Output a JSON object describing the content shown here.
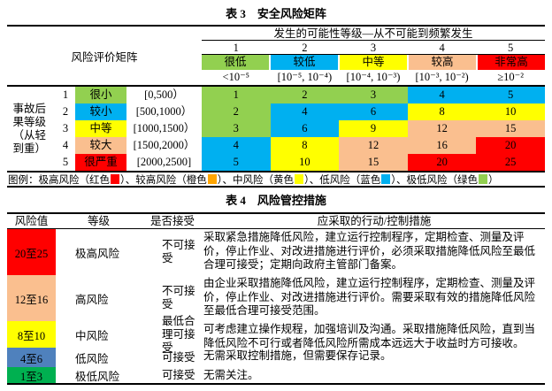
{
  "colors": {
    "green": "#92D050",
    "blue": "#00B0F0",
    "yellow": "#FFFF00",
    "tan": "#FABF8F",
    "red": "#FF0000",
    "legend_orange": "#FFA500",
    "low_blue": "#4F81BD",
    "very_low_green": "#00B050"
  },
  "table3": {
    "title": "表 3　安全风险矩阵",
    "corner_label": "风险评价矩阵",
    "probability_header": "发生的可能性等级—从不可能到频繁发生",
    "columns": [
      {
        "num": "1",
        "label": "很低",
        "color": "green",
        "range": "<10⁻⁵"
      },
      {
        "num": "2",
        "label": "较低",
        "color": "blue",
        "range": "[10⁻⁵, 10⁻⁴)"
      },
      {
        "num": "3",
        "label": "中等",
        "color": "yellow",
        "range": "[10⁻⁴, 10⁻³)"
      },
      {
        "num": "4",
        "label": "较高",
        "color": "tan",
        "range": "[10⁻³, 10⁻²)"
      },
      {
        "num": "5",
        "label": "非常高",
        "color": "red",
        "range": "≥10⁻²"
      }
    ],
    "row_group_label": "事故后果等级（从轻到重）",
    "rows": [
      {
        "num": "1",
        "label": "很小",
        "color": "green",
        "range": "[0,500）",
        "cells": [
          {
            "value": "1",
            "color": "green"
          },
          {
            "value": "2",
            "color": "green"
          },
          {
            "value": "3",
            "color": "green"
          },
          {
            "value": "4",
            "color": "blue"
          },
          {
            "value": "5",
            "color": "blue"
          }
        ]
      },
      {
        "num": "2",
        "label": "较小",
        "color": "blue",
        "range": "[500,1000）",
        "cells": [
          {
            "value": "2",
            "color": "green"
          },
          {
            "value": "4",
            "color": "blue"
          },
          {
            "value": "6",
            "color": "blue"
          },
          {
            "value": "8",
            "color": "yellow"
          },
          {
            "value": "10",
            "color": "yellow"
          }
        ]
      },
      {
        "num": "3",
        "label": "中等",
        "color": "yellow",
        "range": "[1000,1500）",
        "cells": [
          {
            "value": "3",
            "color": "green"
          },
          {
            "value": "6",
            "color": "blue"
          },
          {
            "value": "9",
            "color": "yellow"
          },
          {
            "value": "12",
            "color": "tan"
          },
          {
            "value": "15",
            "color": "tan"
          }
        ]
      },
      {
        "num": "4",
        "label": "较大",
        "color": "tan",
        "range": "[1500,2000）",
        "cells": [
          {
            "value": "4",
            "color": "blue"
          },
          {
            "value": "8",
            "color": "yellow"
          },
          {
            "value": "12",
            "color": "tan"
          },
          {
            "value": "16",
            "color": "tan"
          },
          {
            "value": "20",
            "color": "red"
          }
        ]
      },
      {
        "num": "5",
        "label": "很严重",
        "color": "red",
        "range": "[2000,2500]",
        "cells": [
          {
            "value": "5",
            "color": "blue"
          },
          {
            "value": "10",
            "color": "yellow"
          },
          {
            "value": "15",
            "color": "tan"
          },
          {
            "value": "20",
            "color": "red"
          },
          {
            "value": "25",
            "color": "red"
          }
        ]
      }
    ],
    "legend": {
      "prefix": "图例：",
      "items": [
        {
          "before": "极高风险（红色",
          "color": "#FF0000",
          "after": "）、"
        },
        {
          "before": "较高风险（橙色",
          "color": "#FFA500",
          "after": "）、"
        },
        {
          "before": "中风险（黄色",
          "color": "#FFFF00",
          "after": "）、"
        },
        {
          "before": "低风险（蓝色",
          "color": "#00B0F0",
          "after": "）、"
        },
        {
          "before": "极低风险（绿色",
          "color": "#92D050",
          "after": "）"
        }
      ]
    }
  },
  "table4": {
    "title": "表 4　风险管控措施",
    "headers": {
      "risk_value": "风险值",
      "level": "等级",
      "accept": "是否接受",
      "measures": "应采取的行动/控制措施"
    },
    "rows": [
      {
        "value": "20至25",
        "color": "red",
        "level": "极高风险",
        "accept": "不可接受",
        "measure": "采取紧急措施降低风险，建立运行控制程序，定期检查、测量及评价，停止作业、对改进措施进行评价，必须采取措施降低风险至最低合理可接受；定期向政府主管部门备案。"
      },
      {
        "value": "12至16",
        "color": "tan",
        "level": "高风险",
        "accept": "不可接受",
        "measure": "由企业采取措施降低风险，建立运行控制程序，定期检查、测量及评价，停止作业、对改进措施进行评价。需要采取有效的措施降低风险至最低合理可接受范围。"
      },
      {
        "value": "8至10",
        "color": "yellow",
        "level": "中风险",
        "accept": "最低合理可接受",
        "measure": "可考虑建立操作规程，加强培训及沟通。采取措施降低风险，直到当降低风险不可行或者降低风险所需成本远远大于收益时方可接收。"
      },
      {
        "value": "4至6",
        "color": "low_blue",
        "level": "低风险",
        "accept": "可接受",
        "measure": "无需采取控制措施，但需要保存记录。"
      },
      {
        "value": "1至3",
        "color": "very_low_green",
        "level": "极低风险",
        "accept": "可接受",
        "measure": "无需关注。"
      }
    ]
  }
}
